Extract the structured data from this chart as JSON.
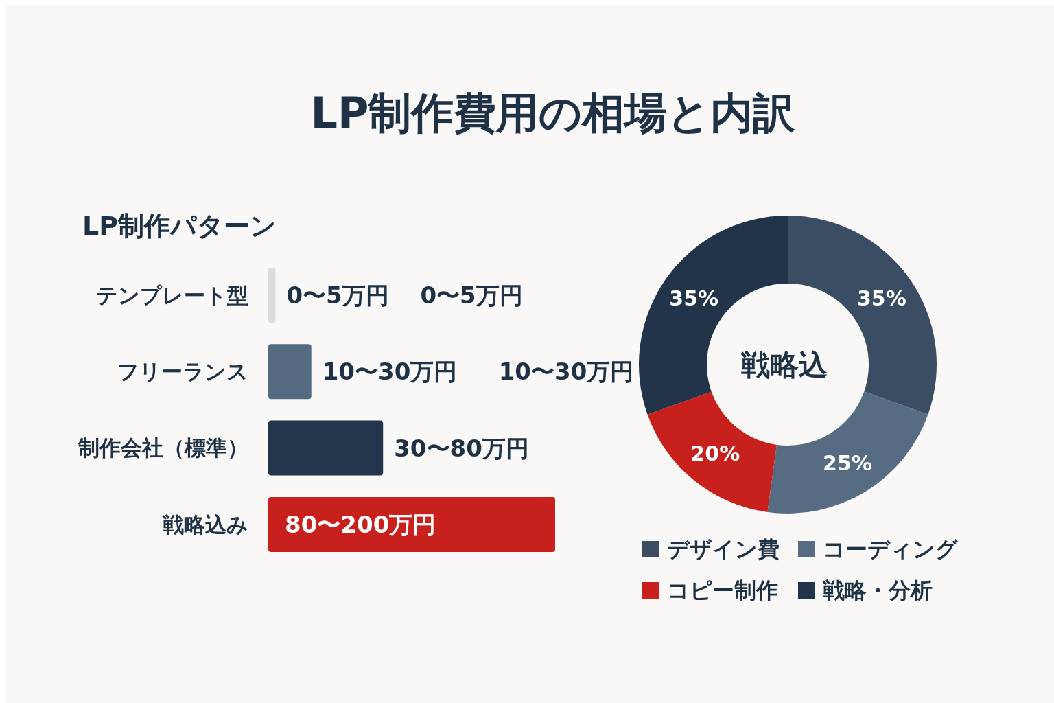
{
  "chart_data": [
    {
      "type": "bar",
      "title": "LP制作費用の相場と内訳",
      "subtitle": "LP制作パターン",
      "orientation": "horizontal",
      "categories": [
        "テンプレート型",
        "フリーランス",
        "制作会社（標準）",
        "戦略込み"
      ],
      "values": [
        5,
        30,
        80,
        200
      ],
      "colors": [
        "#dcdcdc",
        "#536a80",
        "#22354a",
        "#c8201c"
      ],
      "value_labels": [
        "0〜5万円",
        "10〜30万円",
        "30〜80万円",
        "80〜200万円"
      ],
      "annotations": [
        "0〜5万円",
        "10〜30万円"
      ]
    },
    {
      "type": "donut",
      "categories": [
        "デザイン費",
        "コーディング",
        "コピー制作",
        "戦略・分析"
      ],
      "values": [
        35,
        25,
        20,
        35
      ],
      "value_labels": [
        "35%",
        "25%",
        "20%",
        "35%"
      ],
      "colors": [
        "#3a4d63",
        "#566c83",
        "#c8201c",
        "#213449"
      ],
      "legend": "bottom",
      "annotations": [
        "戦略込"
      ]
    }
  ]
}
